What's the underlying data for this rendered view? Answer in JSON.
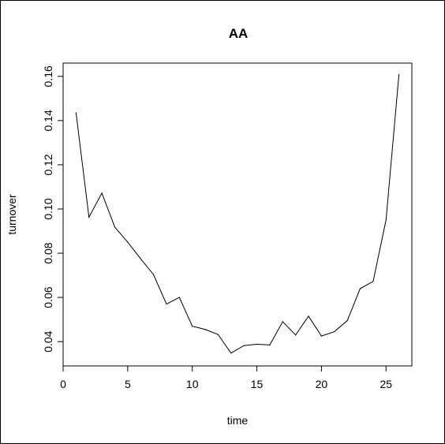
{
  "chart_data": {
    "type": "line",
    "title": "AA",
    "xlabel": "time",
    "ylabel": "turnover",
    "xlim": [
      0,
      27
    ],
    "ylim": [
      0.029,
      0.166
    ],
    "xticks": [
      0,
      5,
      10,
      15,
      20,
      25
    ],
    "xtick_labels": [
      "0",
      "5",
      "10",
      "15",
      "20",
      "25"
    ],
    "yticks": [
      0.04,
      0.06,
      0.08,
      0.1,
      0.12,
      0.14,
      0.16
    ],
    "ytick_labels": [
      "0.04",
      "0.06",
      "0.08",
      "0.10",
      "0.12",
      "0.14",
      "0.16"
    ],
    "grid": false,
    "line_color": "#000000",
    "series": [
      {
        "x": [
          1,
          2,
          3,
          4,
          5,
          6,
          7,
          8,
          9,
          10,
          11,
          12,
          13,
          14,
          15,
          16,
          17,
          18,
          19,
          20,
          21,
          22,
          23,
          24,
          25,
          26
        ],
        "values": [
          0.1435,
          0.0963,
          0.1072,
          0.0918,
          0.085,
          0.0775,
          0.0703,
          0.057,
          0.06,
          0.047,
          0.0455,
          0.0432,
          0.0348,
          0.0382,
          0.0388,
          0.0385,
          0.049,
          0.043,
          0.0515,
          0.0425,
          0.0445,
          0.0495,
          0.064,
          0.0672,
          0.095,
          0.1608
        ]
      }
    ]
  }
}
